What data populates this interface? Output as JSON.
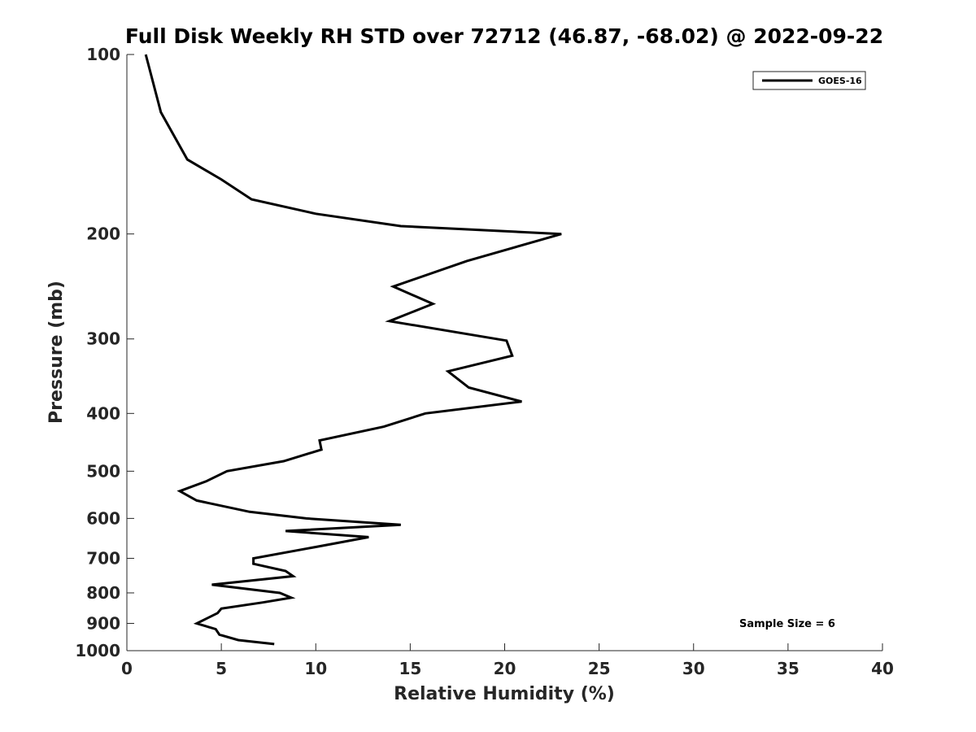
{
  "chart_data": {
    "type": "line",
    "title": "Full Disk Weekly RH STD over 72712 (46.87, -68.02) @ 2022-09-22",
    "xlabel": "Relative Humidity (%)",
    "ylabel": "Pressure (mb)",
    "xlim": [
      0,
      40
    ],
    "ylim": [
      100,
      1000
    ],
    "y_scale": "log",
    "y_reversed": true,
    "x_ticks": [
      0,
      5,
      10,
      15,
      20,
      25,
      30,
      35,
      40
    ],
    "y_ticks": [
      100,
      200,
      300,
      400,
      500,
      600,
      700,
      800,
      900,
      1000
    ],
    "grid": false,
    "legend_position": "top-right",
    "series": [
      {
        "name": "GOES-16",
        "color": "#000000",
        "points": [
          [
            1.0,
            100
          ],
          [
            1.8,
            125
          ],
          [
            3.2,
            150
          ],
          [
            5.0,
            162
          ],
          [
            6.6,
            175
          ],
          [
            10.0,
            185
          ],
          [
            14.5,
            194
          ],
          [
            23.0,
            200
          ],
          [
            18.0,
            222
          ],
          [
            14.1,
            245
          ],
          [
            16.2,
            262
          ],
          [
            13.9,
            280
          ],
          [
            20.1,
            302
          ],
          [
            20.4,
            320
          ],
          [
            17.0,
            340
          ],
          [
            18.1,
            362
          ],
          [
            20.9,
            382
          ],
          [
            15.8,
            400
          ],
          [
            13.6,
            421
          ],
          [
            10.2,
            444
          ],
          [
            10.3,
            460
          ],
          [
            8.3,
            481
          ],
          [
            5.3,
            500
          ],
          [
            4.2,
            520
          ],
          [
            2.8,
            540
          ],
          [
            3.7,
            560
          ],
          [
            6.5,
            585
          ],
          [
            9.5,
            600
          ],
          [
            14.5,
            615
          ],
          [
            8.4,
            630
          ],
          [
            12.8,
            645
          ],
          [
            10.0,
            670
          ],
          [
            6.7,
            700
          ],
          [
            6.7,
            715
          ],
          [
            8.4,
            735
          ],
          [
            8.8,
            750
          ],
          [
            4.5,
            775
          ],
          [
            8.1,
            800
          ],
          [
            8.7,
            815
          ],
          [
            7.2,
            830
          ],
          [
            5.0,
            850
          ],
          [
            4.8,
            865
          ],
          [
            3.7,
            900
          ],
          [
            4.7,
            920
          ],
          [
            4.9,
            940
          ],
          [
            5.9,
            960
          ],
          [
            7.8,
            975
          ]
        ]
      }
    ],
    "annotations": [
      {
        "text": "Sample Size = 6",
        "position": "bottom-right"
      }
    ]
  }
}
